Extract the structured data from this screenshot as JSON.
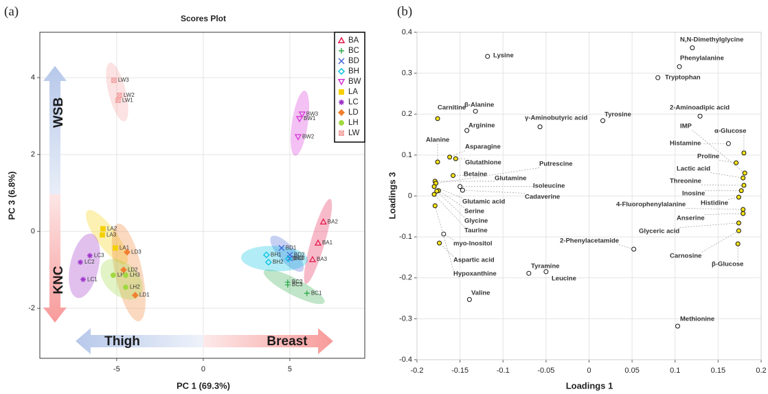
{
  "panels": [
    "(a)",
    "(b)"
  ],
  "chart_data": [
    {
      "type": "scatter",
      "title": "Scores Plot",
      "xlabel": "PC 1 (69.3%)",
      "ylabel": "PC 3 (6.8%)",
      "xlim": [
        -9.44,
        9.33
      ],
      "ylim": [
        -3.3,
        5.18
      ],
      "xticks": [
        -5,
        0,
        5
      ],
      "yticks": [
        -2,
        0,
        2,
        4
      ],
      "grid": true,
      "legend": "top-right",
      "annotations": [
        "WSB",
        "KNC",
        "Thigh",
        "Breast"
      ],
      "series": [
        {
          "name": "BA",
          "color": "#e6194b",
          "marker": "triangle-up",
          "labels": [
            "BA1",
            "BA2",
            "BA3"
          ],
          "x": [
            6.63,
            6.94,
            6.31
          ],
          "y": [
            -0.3,
            0.25,
            -0.73
          ]
        },
        {
          "name": "BC",
          "color": "#2ea84a",
          "marker": "plus",
          "labels": [
            "BC1",
            "BC2",
            "BC3"
          ],
          "x": [
            5.99,
            4.88,
            4.88
          ],
          "y": [
            -1.61,
            -1.32,
            -1.39
          ]
        },
        {
          "name": "BD",
          "color": "#4363d8",
          "marker": "x",
          "labels": [
            "BD1",
            "BD2",
            "BD3"
          ],
          "x": [
            4.52,
            5.0,
            5.0
          ],
          "y": [
            -0.43,
            -0.61,
            -0.7
          ]
        },
        {
          "name": "BH",
          "color": "#00c0e0",
          "marker": "diamond",
          "labels": [
            "BH1",
            "BH2",
            "BH3"
          ],
          "x": [
            3.65,
            3.77,
            4.92
          ],
          "y": [
            -0.61,
            -0.8,
            -0.71
          ]
        },
        {
          "name": "BW",
          "color": "#d633d6",
          "marker": "triangle-down",
          "labels": [
            "BW1",
            "BW2",
            "BW3"
          ],
          "x": [
            5.56,
            5.48,
            5.71
          ],
          "y": [
            2.93,
            2.46,
            3.05
          ]
        },
        {
          "name": "LA",
          "color": "#f5d000",
          "marker": "square",
          "labels": [
            "LA1",
            "LA2",
            "LA3"
          ],
          "x": [
            -5.08,
            -5.79,
            -5.83
          ],
          "y": [
            -0.43,
            0.07,
            -0.09
          ]
        },
        {
          "name": "LC",
          "color": "#9b30c8",
          "marker": "asterisk",
          "labels": [
            "LC1",
            "LC2",
            "LC3"
          ],
          "x": [
            -6.94,
            -7.1,
            -6.55
          ],
          "y": [
            -1.25,
            -0.8,
            -0.63
          ]
        },
        {
          "name": "LD",
          "color": "#f08030",
          "marker": "diamond-filled",
          "labels": [
            "LD1",
            "LD2",
            "LD3"
          ],
          "x": [
            -3.93,
            -4.6,
            -4.4
          ],
          "y": [
            -1.66,
            -1.0,
            -0.54
          ]
        },
        {
          "name": "LH",
          "color": "#a0d840",
          "marker": "circle-filled",
          "labels": [
            "LH1",
            "LH2",
            "LH3"
          ],
          "x": [
            -5.2,
            -4.48,
            -4.48
          ],
          "y": [
            -1.14,
            -1.45,
            -1.14
          ]
        },
        {
          "name": "LW",
          "color": "#f4a0a0",
          "marker": "box-x",
          "labels": [
            "LW1",
            "LW2",
            "LW3"
          ],
          "x": [
            -4.92,
            -4.84,
            -5.16
          ],
          "y": [
            3.41,
            3.54,
            3.93
          ]
        }
      ]
    },
    {
      "type": "scatter",
      "xlabel": "Loadings 1",
      "ylabel": "Loadings 3",
      "xlim": [
        -0.2,
        0.2
      ],
      "ylim": [
        -0.4,
        0.4
      ],
      "xticks": [
        -0.2,
        -0.15,
        -0.1,
        -0.05,
        0,
        0.05,
        0.1,
        0.15,
        0.2
      ],
      "yticks": [
        -0.4,
        -0.3,
        -0.2,
        -0.1,
        0,
        0.1,
        0.2,
        0.3,
        0.4
      ],
      "grid": true,
      "points": [
        {
          "label": "Lysine",
          "x": -0.118,
          "y": 0.341,
          "fill": "#ffffff"
        },
        {
          "label": "N,N-Dimethylglycine",
          "x": 0.12,
          "y": 0.362,
          "fill": "#ffffff"
        },
        {
          "label": "Phenylalanine",
          "x": 0.105,
          "y": 0.316,
          "fill": "#ffffff"
        },
        {
          "label": "Tryptophan",
          "x": 0.08,
          "y": 0.289,
          "fill": "#ffffff"
        },
        {
          "label": "β-Alanine",
          "x": -0.132,
          "y": 0.207,
          "fill": "#ffffff"
        },
        {
          "label": "Arginine",
          "x": -0.142,
          "y": 0.16,
          "fill": "#ffffff"
        },
        {
          "label": "γ-Aminobutyric acid",
          "x": -0.057,
          "y": 0.169,
          "fill": "#ffffff"
        },
        {
          "label": "Tyrosine",
          "x": 0.016,
          "y": 0.184,
          "fill": "#ffffff"
        },
        {
          "label": "2-Aminoadipic acid",
          "x": 0.129,
          "y": 0.195,
          "fill": "#ffffff"
        },
        {
          "label": "Histamine",
          "x": 0.162,
          "y": 0.128,
          "fill": "#ffffff"
        },
        {
          "label": "Isoleucine",
          "x": -0.15,
          "y": 0.023,
          "fill": "#ffffff"
        },
        {
          "label": "Cadaverine",
          "x": -0.147,
          "y": 0.014,
          "fill": "#ffffff"
        },
        {
          "label": "myo-Inositol",
          "x": -0.169,
          "y": -0.093,
          "fill": "#ffffff"
        },
        {
          "label": "2-Phenylacetamide",
          "x": 0.052,
          "y": -0.13,
          "fill": "#ffffff"
        },
        {
          "label": "Tyramine",
          "x": -0.07,
          "y": -0.189,
          "fill": "#ffffff"
        },
        {
          "label": "Leucine",
          "x": -0.05,
          "y": -0.185,
          "fill": "#ffffff"
        },
        {
          "label": "Valine",
          "x": -0.139,
          "y": -0.253,
          "fill": "#ffffff"
        },
        {
          "label": "Methionine",
          "x": 0.103,
          "y": -0.318,
          "fill": "#ffffff"
        },
        {
          "label": "Carnitine",
          "x": -0.176,
          "y": 0.189,
          "fill": "#f5e21a"
        },
        {
          "label": "Alanine",
          "x": -0.176,
          "y": 0.083,
          "fill": "#f5e21a"
        },
        {
          "label": "Asparagine",
          "x": -0.162,
          "y": 0.095,
          "fill": "#f5e21a"
        },
        {
          "label": "Glutathione",
          "x": -0.155,
          "y": 0.091,
          "fill": "#f5e21a"
        },
        {
          "label": "Betaine",
          "x": -0.158,
          "y": 0.05,
          "fill": "#f5e21a"
        },
        {
          "label": "Glutamine",
          "x": -0.179,
          "y": 0.036,
          "fill": "#f5e21a"
        },
        {
          "label": "Putrescine",
          "x": -0.178,
          "y": 0.031,
          "fill": "#f5e21a"
        },
        {
          "label": "Glutamic acid",
          "x": -0.18,
          "y": 0.023,
          "fill": "#f5e21a"
        },
        {
          "label": "Serine",
          "x": -0.175,
          "y": 0.013,
          "fill": "#f5e21a"
        },
        {
          "label": "Glycine",
          "x": -0.177,
          "y": 0.012,
          "fill": "#f5e21a"
        },
        {
          "label": "Taurine",
          "x": -0.18,
          "y": 0.004,
          "fill": "#f5e21a"
        },
        {
          "label": "Hypoxanthine",
          "x": -0.179,
          "y": -0.024,
          "fill": "#f5e21a"
        },
        {
          "label": "Aspartic acid",
          "x": -0.174,
          "y": -0.115,
          "fill": "#f5e21a"
        },
        {
          "label": "α-Glucose",
          "x": 0.18,
          "y": 0.105,
          "fill": "#f5e21a"
        },
        {
          "label": "Proline",
          "x": 0.171,
          "y": 0.081,
          "fill": "#f5e21a"
        },
        {
          "label": "IMP",
          "x": 0.181,
          "y": 0.056,
          "fill": "#f5e21a"
        },
        {
          "label": "Lactic acid",
          "x": 0.179,
          "y": 0.044,
          "fill": "#f5e21a"
        },
        {
          "label": "Threonine",
          "x": 0.18,
          "y": 0.026,
          "fill": "#f5e21a"
        },
        {
          "label": "Inosine",
          "x": 0.177,
          "y": 0.013,
          "fill": "#f5e21a"
        },
        {
          "label": "Histidine",
          "x": 0.174,
          "y": -0.003,
          "fill": "#f5e21a"
        },
        {
          "label": "4-Fluorophenylalanine",
          "x": 0.179,
          "y": -0.033,
          "fill": "#f5e21a"
        },
        {
          "label": "Anserine",
          "x": 0.179,
          "y": -0.043,
          "fill": "#f5e21a"
        },
        {
          "label": "Glyceric acid",
          "x": 0.174,
          "y": -0.066,
          "fill": "#f5e21a"
        },
        {
          "label": "Carnosine",
          "x": 0.174,
          "y": -0.085,
          "fill": "#f5e21a"
        },
        {
          "label": "β-Glucose",
          "x": 0.173,
          "y": -0.117,
          "fill": "#f5e21a"
        }
      ]
    }
  ]
}
